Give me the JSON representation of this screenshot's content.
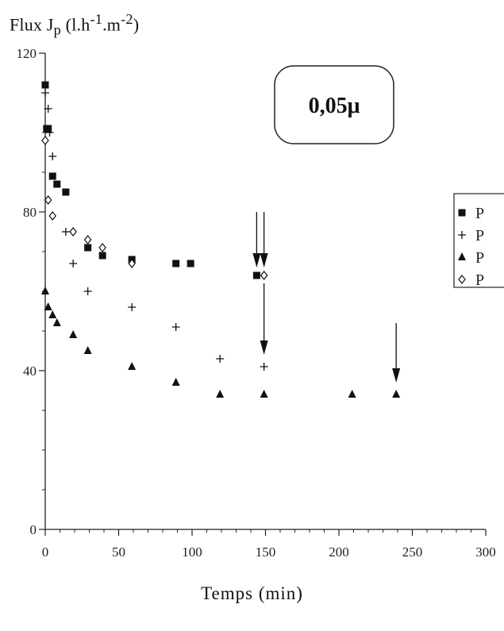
{
  "chart_data": {
    "type": "scatter",
    "title": "",
    "ylabel": {
      "prefix": "Flux J",
      "sub": "p",
      "unit_open": " (l.h",
      "unit_exp1": "-1",
      "unit_mid": ".m",
      "unit_exp2": "-2",
      "unit_close": ")"
    },
    "xlabel": "Temps (min)",
    "xlim": [
      0,
      300
    ],
    "ylim": [
      0,
      120
    ],
    "xticks": [
      0,
      50,
      100,
      150,
      200,
      250,
      300
    ],
    "yticks": [
      0,
      40,
      80,
      120
    ],
    "grid": false,
    "legend_position": "right",
    "annotation": "0,05μ",
    "series": [
      {
        "name": "P",
        "marker": "square",
        "points": [
          [
            0,
            112
          ],
          [
            1,
            101
          ],
          [
            2,
            101
          ],
          [
            5,
            89
          ],
          [
            8,
            87
          ],
          [
            14,
            85
          ],
          [
            29,
            71
          ],
          [
            39,
            69
          ],
          [
            59,
            68
          ],
          [
            89,
            67
          ],
          [
            99,
            67
          ],
          [
            144,
            64
          ]
        ]
      },
      {
        "name": "P",
        "marker": "plus",
        "points": [
          [
            0,
            110
          ],
          [
            2,
            106
          ],
          [
            3,
            100
          ],
          [
            5,
            94
          ],
          [
            14,
            75
          ],
          [
            19,
            67
          ],
          [
            29,
            60
          ],
          [
            59,
            56
          ],
          [
            89,
            51
          ],
          [
            119,
            43
          ],
          [
            149,
            41
          ]
        ]
      },
      {
        "name": "P",
        "marker": "triangle",
        "points": [
          [
            0,
            60
          ],
          [
            2,
            56
          ],
          [
            5,
            54
          ],
          [
            8,
            52
          ],
          [
            19,
            49
          ],
          [
            29,
            45
          ],
          [
            59,
            41
          ],
          [
            89,
            37
          ],
          [
            119,
            34
          ],
          [
            149,
            34
          ],
          [
            209,
            34
          ],
          [
            239,
            34
          ]
        ]
      },
      {
        "name": "P",
        "marker": "diamond",
        "points": [
          [
            0,
            98
          ],
          [
            2,
            83
          ],
          [
            5,
            79
          ],
          [
            19,
            75
          ],
          [
            29,
            73
          ],
          [
            39,
            71
          ],
          [
            59,
            67
          ],
          [
            149,
            64
          ]
        ]
      }
    ],
    "arrows": [
      {
        "x": 144,
        "y_start": 80,
        "y_end": 66
      },
      {
        "x": 149,
        "y_start": 80,
        "y_end": 66
      },
      {
        "x": 149,
        "y_start": 62,
        "y_end": 44
      },
      {
        "x": 239,
        "y_start": 52,
        "y_end": 37
      }
    ]
  }
}
